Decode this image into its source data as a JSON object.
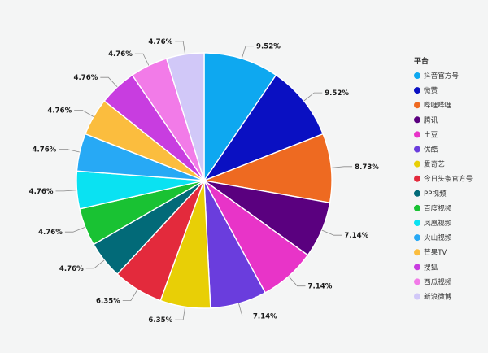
{
  "chart_data": {
    "type": "pie",
    "legend": {
      "title": "平台",
      "placement": "right"
    },
    "slices": [
      {
        "label": "抖音官方号",
        "value": 9.52,
        "display": "9.52%",
        "color": "#0ea8f0"
      },
      {
        "label": "微赞",
        "value": 9.52,
        "display": "9.52%",
        "color": "#0a10c2"
      },
      {
        "label": "哔哩哔哩",
        "value": 8.73,
        "display": "8.73%",
        "color": "#ee6a21"
      },
      {
        "label": "腾讯",
        "value": 7.14,
        "display": "7.14%",
        "color": "#5a007f"
      },
      {
        "label": "土豆",
        "value": 7.14,
        "display": "7.14%",
        "color": "#e834c8"
      },
      {
        "label": "优酷",
        "value": 7.14,
        "display": "7.14%",
        "color": "#6a3ddd"
      },
      {
        "label": "爱奇艺",
        "value": 6.35,
        "display": "6.35%",
        "color": "#e8cf06"
      },
      {
        "label": "今日头条官方号",
        "value": 6.35,
        "display": "6.35%",
        "color": "#e32a3c"
      },
      {
        "label": "PP视频",
        "value": 4.76,
        "display": "4.76%",
        "color": "#026a78"
      },
      {
        "label": "百度视频",
        "value": 4.76,
        "display": "4.76%",
        "color": "#19c233"
      },
      {
        "label": "凤凰视频",
        "value": 4.76,
        "display": "4.76%",
        "color": "#0ae2f2"
      },
      {
        "label": "火山视频",
        "value": 4.76,
        "display": "4.76%",
        "color": "#27a9f5"
      },
      {
        "label": "芒果TV",
        "value": 4.76,
        "display": "4.76%",
        "color": "#fbbd3e"
      },
      {
        "label": "搜狐",
        "value": 4.76,
        "display": "4.76%",
        "color": "#c83de0"
      },
      {
        "label": "西瓜视频",
        "value": 4.76,
        "display": "4.76%",
        "color": "#f27be8"
      },
      {
        "label": "新浪微博",
        "value": 4.76,
        "display": "4.76%",
        "color": "#d1c8f8"
      }
    ]
  }
}
